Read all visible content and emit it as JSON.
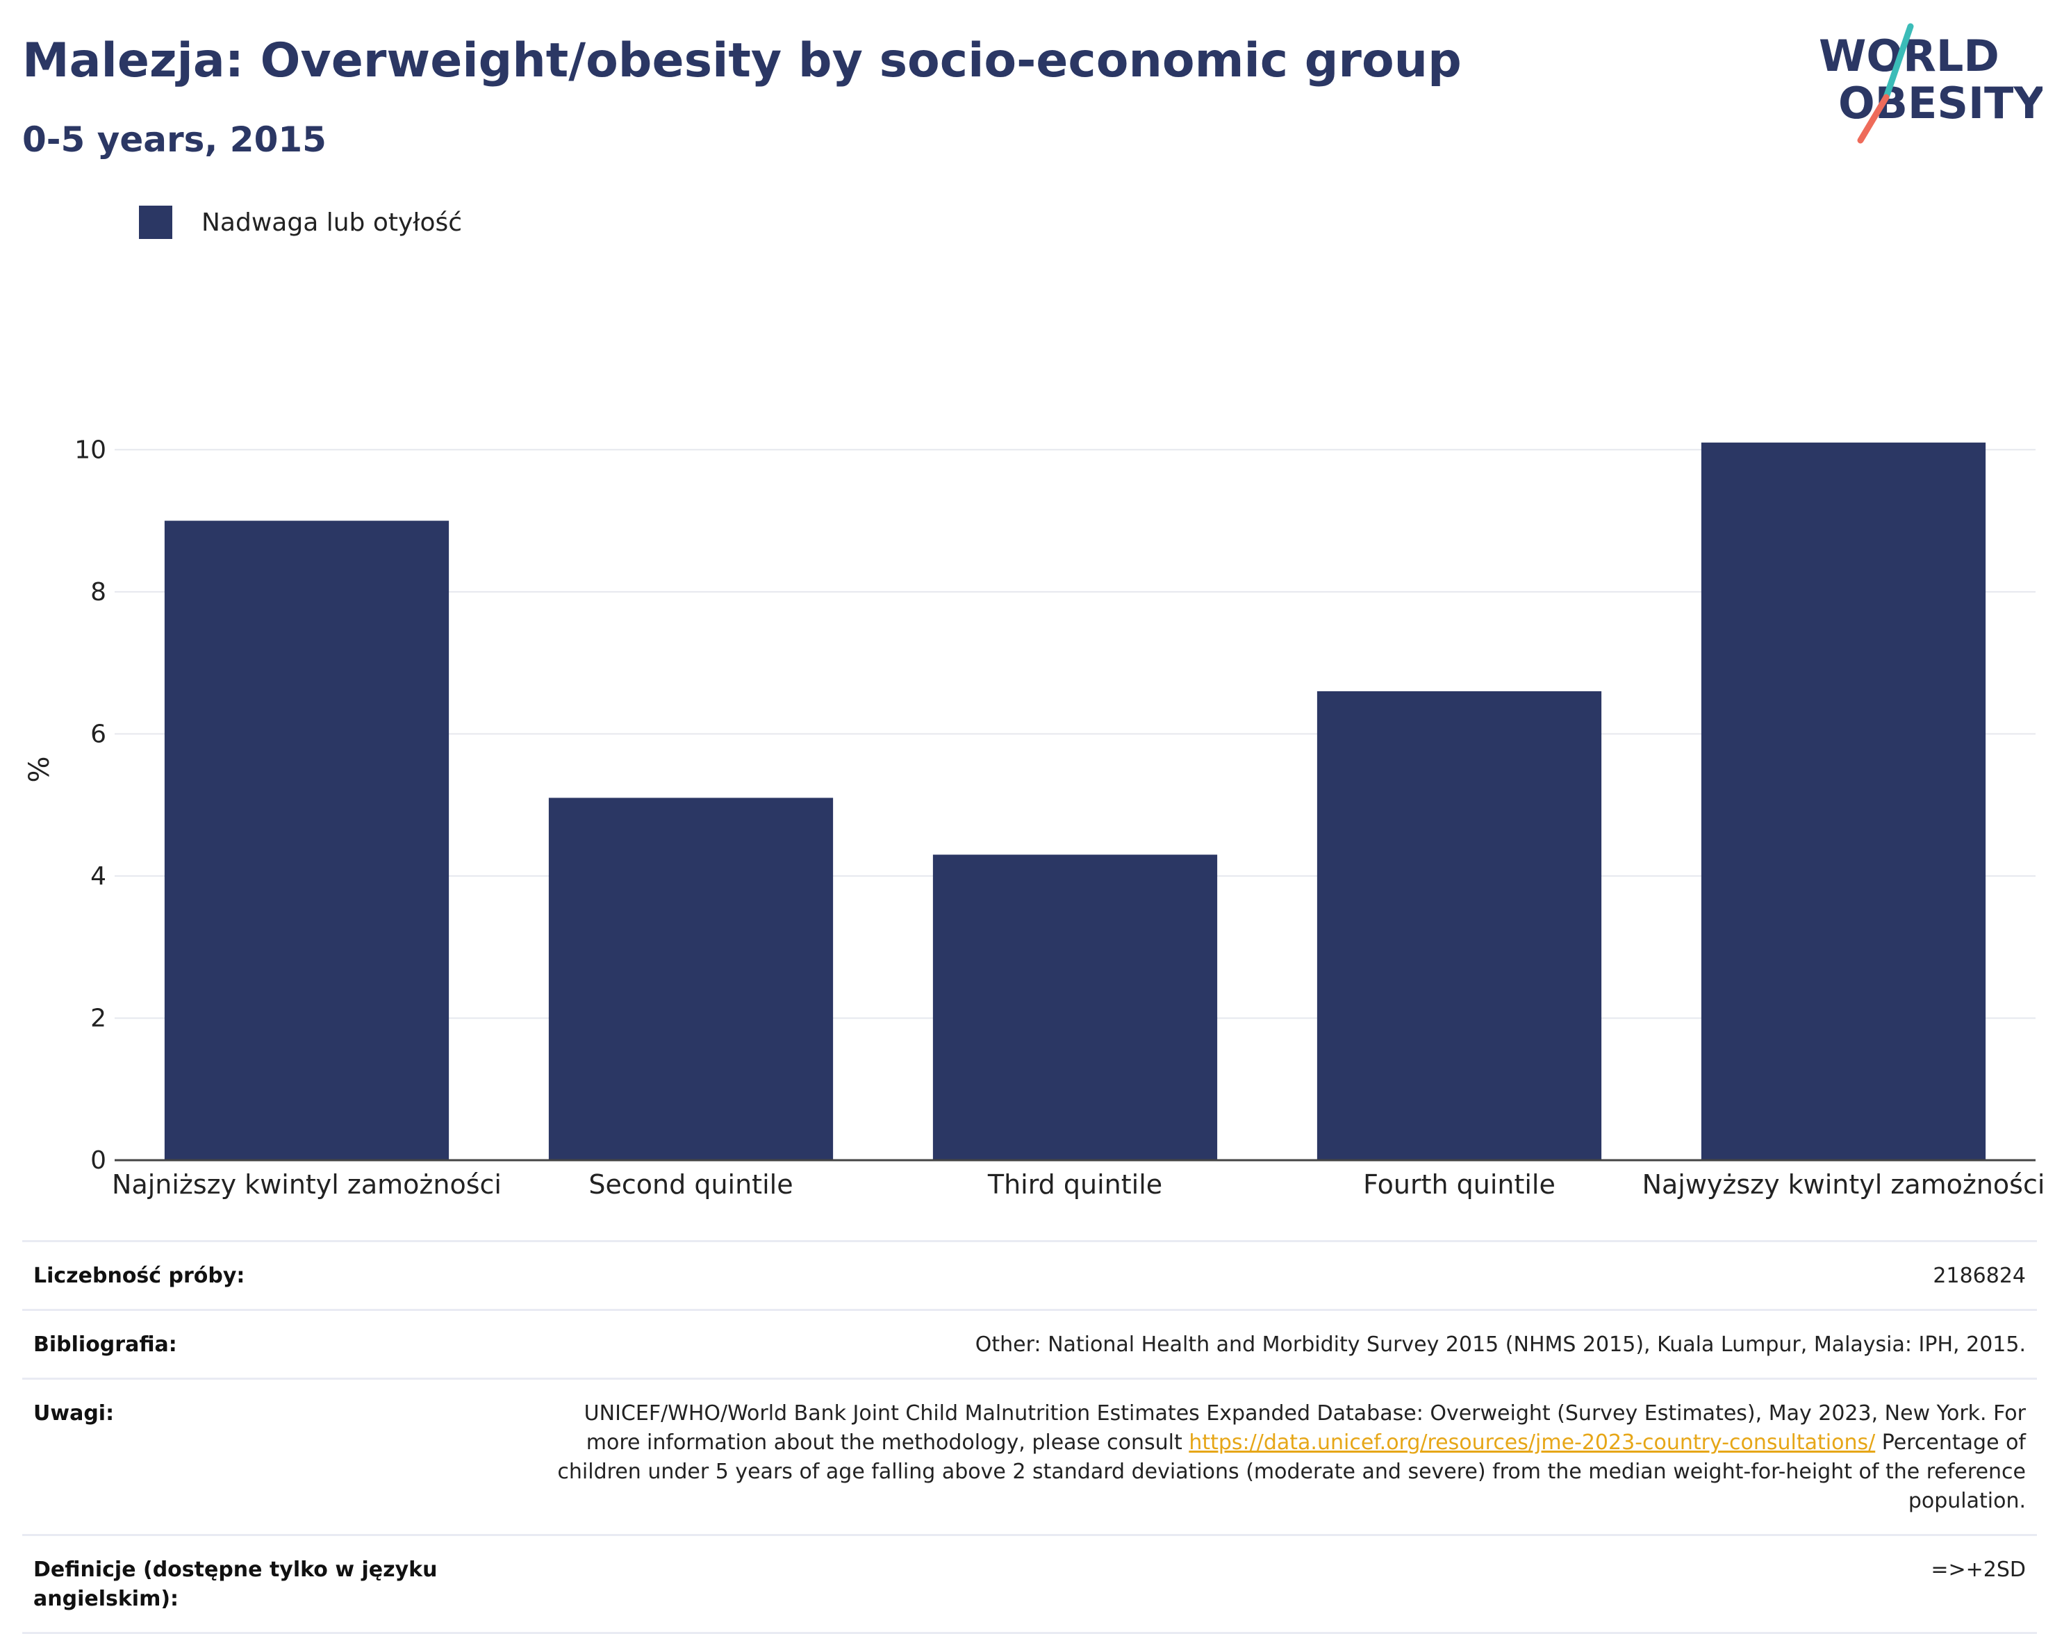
{
  "header": {
    "title": "Malezja: Overweight/obesity by socio-economic group",
    "subtitle": "0-5 years, 2015",
    "logo_line1": "WORLD",
    "logo_line2": "OBESITY"
  },
  "legend": {
    "label": "Nadwaga lub otyłość",
    "color": "#2b3764"
  },
  "chart_data": {
    "type": "bar",
    "categories": [
      "Najniższy kwintyl zamożności",
      "Second quintile",
      "Third quintile",
      "Fourth quintile",
      "Najwyższy kwintyl zamożności"
    ],
    "series": [
      {
        "name": "Nadwaga lub otyłość",
        "values": [
          9.0,
          5.1,
          4.3,
          6.6,
          10.1
        ],
        "color": "#2b3764"
      }
    ],
    "ylabel": "%",
    "ylim": [
      0,
      11
    ],
    "yticks": [
      0,
      2,
      4,
      6,
      8,
      10
    ],
    "grid": true
  },
  "meta": {
    "sample_size": {
      "label": "Liczebność próby:",
      "value": "2186824"
    },
    "bibliography": {
      "label": "Bibliografia:",
      "value": "Other: National Health and Morbidity Survey 2015 (NHMS 2015), Kuala Lumpur, Malaysia: IPH, 2015."
    },
    "notes": {
      "label": "Uwagi:",
      "text_before": "UNICEF/WHO/World Bank Joint Child Malnutrition Estimates Expanded Database: Overweight (Survey Estimates), May 2023, New York. For more information about the methodology, please consult ",
      "link": "https://data.unicef.org/resources/jme-2023-country-consultations/",
      "text_after": " Percentage of children under 5 years of age falling above 2 standard deviations (moderate and severe) from the median weight-for-height of the reference population."
    },
    "definitions": {
      "label": "Definicje (dostępne tylko w języku angielskim):",
      "value": "=>+2SD"
    }
  }
}
